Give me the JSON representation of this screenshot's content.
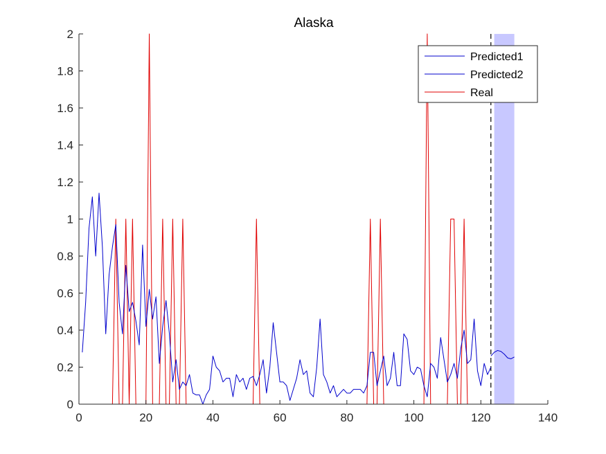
{
  "chart_data": {
    "type": "line",
    "title": "Alaska",
    "xlabel": "",
    "ylabel": "",
    "xlim": [
      0,
      140
    ],
    "ylim": [
      0,
      2
    ],
    "xticks": [
      0,
      20,
      40,
      60,
      80,
      100,
      120,
      140
    ],
    "yticks": [
      0,
      0.2,
      0.4,
      0.6,
      0.8,
      1,
      1.2,
      1.4,
      1.6,
      1.8,
      2
    ],
    "ytick_labels": [
      "0",
      "0.2",
      "0.4",
      "0.6",
      "0.8",
      "1",
      "1.2",
      "1.4",
      "1.6",
      "1.8",
      "2"
    ],
    "grid": false,
    "legend_position": "top-right",
    "vline_x": 123,
    "band": {
      "x0": 124,
      "x1": 130,
      "color": "#c8c8ff"
    },
    "series": [
      {
        "name": "Predicted1",
        "color": "#0000cc",
        "x": [
          1,
          2,
          3,
          4,
          5,
          6,
          7,
          8,
          9,
          10,
          11,
          12,
          13,
          14,
          15,
          16,
          17,
          18,
          19,
          20,
          21,
          22,
          23,
          24,
          25,
          26,
          27,
          28,
          29,
          30,
          31,
          32,
          33,
          34,
          35,
          36,
          37,
          38,
          39,
          40,
          41,
          42,
          43,
          44,
          45,
          46,
          47,
          48,
          49,
          50,
          51,
          52,
          53,
          54,
          55,
          56,
          57,
          58,
          59,
          60,
          61,
          62,
          63,
          64,
          65,
          66,
          67,
          68,
          69,
          70,
          71,
          72,
          73,
          74,
          75,
          76,
          77,
          78,
          79,
          80,
          81,
          82,
          83,
          84,
          85,
          86,
          87,
          88,
          89,
          90,
          91,
          92,
          93,
          94,
          95,
          96,
          97,
          98,
          99,
          100,
          101,
          102,
          103,
          104,
          105,
          106,
          107,
          108,
          109,
          110,
          111,
          112,
          113,
          114,
          115,
          116,
          117,
          118,
          119,
          120,
          121,
          122,
          123
        ],
        "values": [
          0.28,
          0.55,
          0.95,
          1.12,
          0.8,
          1.14,
          0.85,
          0.38,
          0.7,
          0.85,
          0.97,
          0.55,
          0.38,
          0.75,
          0.5,
          0.55,
          0.45,
          0.32,
          0.86,
          0.42,
          0.62,
          0.46,
          0.58,
          0.22,
          0.42,
          0.56,
          0.38,
          0.12,
          0.24,
          0.08,
          0.12,
          0.1,
          0.16,
          0.06,
          0.05,
          0.05,
          0.0,
          0.05,
          0.08,
          0.26,
          0.2,
          0.18,
          0.12,
          0.14,
          0.14,
          0.04,
          0.16,
          0.12,
          0.14,
          0.08,
          0.14,
          0.15,
          0.1,
          0.16,
          0.24,
          0.06,
          0.2,
          0.44,
          0.28,
          0.12,
          0.12,
          0.1,
          0.02,
          0.08,
          0.14,
          0.24,
          0.16,
          0.18,
          0.06,
          0.04,
          0.2,
          0.46,
          0.16,
          0.12,
          0.06,
          0.1,
          0.04,
          0.06,
          0.08,
          0.06,
          0.06,
          0.08,
          0.08,
          0.08,
          0.06,
          0.1,
          0.28,
          0.28,
          0.1,
          0.18,
          0.26,
          0.1,
          0.14,
          0.28,
          0.1,
          0.1,
          0.38,
          0.35,
          0.18,
          0.16,
          0.2,
          0.19,
          0.1,
          0.04,
          0.22,
          0.2,
          0.14,
          0.36,
          0.24,
          0.12,
          0.16,
          0.22,
          0.14,
          0.3,
          0.4,
          0.22,
          0.24,
          0.46,
          0.18,
          0.1,
          0.22,
          0.16,
          0.2
        ]
      },
      {
        "name": "Predicted2",
        "color": "#0000cc",
        "x": [
          123,
          124,
          125,
          126,
          127,
          128,
          129,
          130
        ],
        "values": [
          0.26,
          0.28,
          0.29,
          0.285,
          0.27,
          0.25,
          0.245,
          0.255
        ]
      },
      {
        "name": "Real",
        "color": "#e00000",
        "x": [
          1,
          10,
          11,
          12,
          13,
          14,
          15,
          16,
          17,
          20,
          21,
          22,
          23,
          24,
          25,
          26,
          27,
          28,
          29,
          30,
          31,
          32,
          52,
          53,
          54,
          86,
          87,
          88,
          89,
          90,
          91,
          103,
          104,
          105,
          110,
          111,
          112,
          113,
          114,
          115,
          116,
          123
        ],
        "values": [
          0,
          0,
          1,
          0,
          0,
          1,
          0,
          1,
          0,
          0,
          2,
          0,
          0,
          0,
          1,
          0,
          0,
          1,
          0,
          0,
          1,
          0,
          0,
          1,
          0,
          0,
          1,
          0,
          0,
          1,
          0,
          0,
          2,
          0,
          0,
          1,
          1,
          0,
          0,
          1,
          0,
          0
        ]
      }
    ]
  }
}
